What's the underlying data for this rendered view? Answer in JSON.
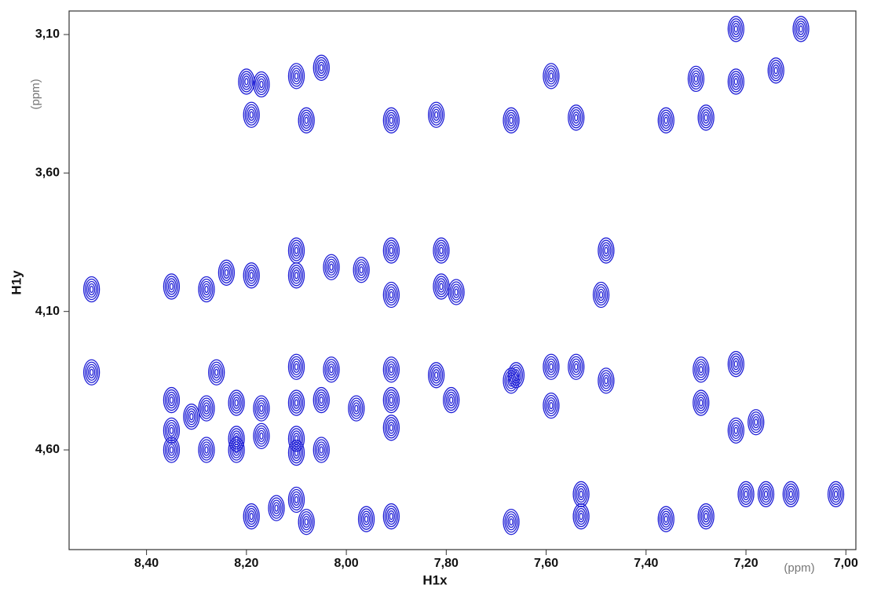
{
  "chart_data": {
    "type": "contour",
    "x_label": "H1x",
    "y_label": "H1y",
    "x_unit": "(ppm)",
    "y_unit": "(ppm)",
    "x": [
      7.22,
      7.09,
      8.1,
      8.05,
      8.2,
      8.17,
      7.59,
      7.3,
      7.22,
      7.14,
      8.19,
      8.08,
      7.91,
      7.82,
      7.67,
      7.54,
      7.36,
      7.28,
      8.1,
      7.91,
      7.81,
      7.48,
      8.24,
      8.19,
      8.1,
      8.03,
      7.97,
      8.51,
      8.35,
      8.28,
      7.91,
      7.81,
      7.78,
      7.49,
      8.51,
      8.26,
      8.1,
      8.03,
      7.91,
      7.82,
      7.59,
      7.54,
      7.48,
      7.29,
      7.22,
      8.35,
      8.28,
      8.22,
      8.17,
      8.1,
      8.05,
      7.98,
      7.91,
      7.79,
      7.67,
      7.66,
      7.59,
      7.29,
      8.35,
      8.31,
      8.22,
      8.17,
      8.1,
      8.05,
      7.91,
      7.22,
      7.18,
      8.35,
      8.28,
      8.22,
      8.1,
      8.1,
      8.14,
      8.19,
      8.08,
      7.96,
      7.91,
      7.67,
      7.53,
      7.53,
      7.36,
      7.28,
      7.2,
      7.16,
      7.11,
      7.02
    ],
    "values": [
      3.08,
      3.08,
      3.25,
      3.22,
      3.27,
      3.28,
      3.25,
      3.26,
      3.27,
      3.23,
      3.39,
      3.41,
      3.41,
      3.39,
      3.41,
      3.4,
      3.41,
      3.4,
      3.88,
      3.88,
      3.88,
      3.88,
      3.96,
      3.97,
      3.97,
      3.94,
      3.95,
      4.02,
      4.01,
      4.02,
      4.04,
      4.01,
      4.03,
      4.04,
      4.32,
      4.32,
      4.3,
      4.31,
      4.31,
      4.33,
      4.3,
      4.3,
      4.35,
      4.31,
      4.29,
      4.42,
      4.45,
      4.43,
      4.45,
      4.43,
      4.42,
      4.45,
      4.42,
      4.42,
      4.35,
      4.33,
      4.44,
      4.43,
      4.53,
      4.48,
      4.56,
      4.55,
      4.56,
      4.6,
      4.52,
      4.53,
      4.5,
      4.6,
      4.6,
      4.6,
      4.61,
      4.78,
      4.81,
      4.84,
      4.86,
      4.85,
      4.84,
      4.86,
      4.84,
      4.76,
      4.85,
      4.84,
      4.76,
      4.76,
      4.76,
      4.76
    ],
    "color": "#1f1fd6",
    "xlim": [
      8.555,
      6.98
    ],
    "ylim": [
      3.015,
      4.96
    ],
    "xticks": [
      {
        "value": 8.4,
        "label": "8,40"
      },
      {
        "value": 8.2,
        "label": "8,20"
      },
      {
        "value": 8.0,
        "label": "8,00"
      },
      {
        "value": 7.8,
        "label": "7,80"
      },
      {
        "value": 7.6,
        "label": "7,60"
      },
      {
        "value": 7.4,
        "label": "7,40"
      },
      {
        "value": 7.2,
        "label": "7,20"
      },
      {
        "value": 7.0,
        "label": "7,00"
      }
    ],
    "yticks": [
      {
        "value": 3.1,
        "label": "3,10"
      },
      {
        "value": 3.6,
        "label": "3,60"
      },
      {
        "value": 4.1,
        "label": "4,10"
      },
      {
        "value": 4.6,
        "label": "4,60"
      }
    ]
  }
}
